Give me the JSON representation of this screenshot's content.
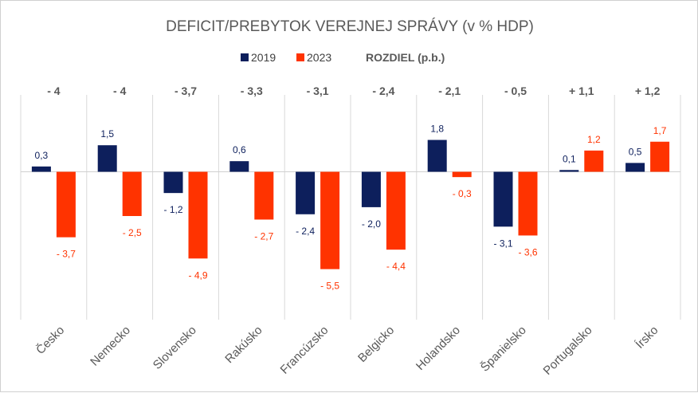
{
  "chart_data": {
    "type": "bar",
    "title": "DEFICIT/PREBYTOK VEREJNEJ SPRÁVY (v % HDP)",
    "categories": [
      "Česko",
      "Nemecko",
      "Slovensko",
      "Rakúsko",
      "Francúzsko",
      "Belgicko",
      "Holandsko",
      "Španielsko",
      "Portugalsko",
      "Írsko"
    ],
    "series": [
      {
        "name": "2019",
        "color": "#0d1f5c",
        "values": [
          0.3,
          1.5,
          -1.2,
          0.6,
          -2.4,
          -2.0,
          1.8,
          -3.1,
          0.1,
          0.5
        ],
        "labels": [
          "0,3",
          "1,5",
          "- 1,2",
          "0,6",
          "- 2,4",
          "- 2,0",
          "1,8",
          "- 3,1",
          "0,1",
          "0,5"
        ]
      },
      {
        "name": "2023",
        "color": "#ff3300",
        "values": [
          -3.7,
          -2.5,
          -4.9,
          -2.7,
          -5.5,
          -4.4,
          -0.3,
          -3.6,
          1.2,
          1.7
        ],
        "labels": [
          "- 3,7",
          "- 2,5",
          "- 4,9",
          "- 2,7",
          "- 5,5",
          "- 4,4",
          "- 0,3",
          "- 3,6",
          "1,2",
          "1,7"
        ]
      }
    ],
    "difference_label": "ROZDIEL (p.b.)",
    "difference": [
      "- 4",
      "- 4",
      "- 3,7",
      "- 3,3",
      "- 3,1",
      "- 2,4",
      "- 2,1",
      "- 0,5",
      "+ 1,1",
      "+ 1,2"
    ],
    "xlabel": "",
    "ylabel": "",
    "ylim": [
      -6.5,
      3.8
    ],
    "grid": "vertical separators",
    "legend_position": "top"
  }
}
